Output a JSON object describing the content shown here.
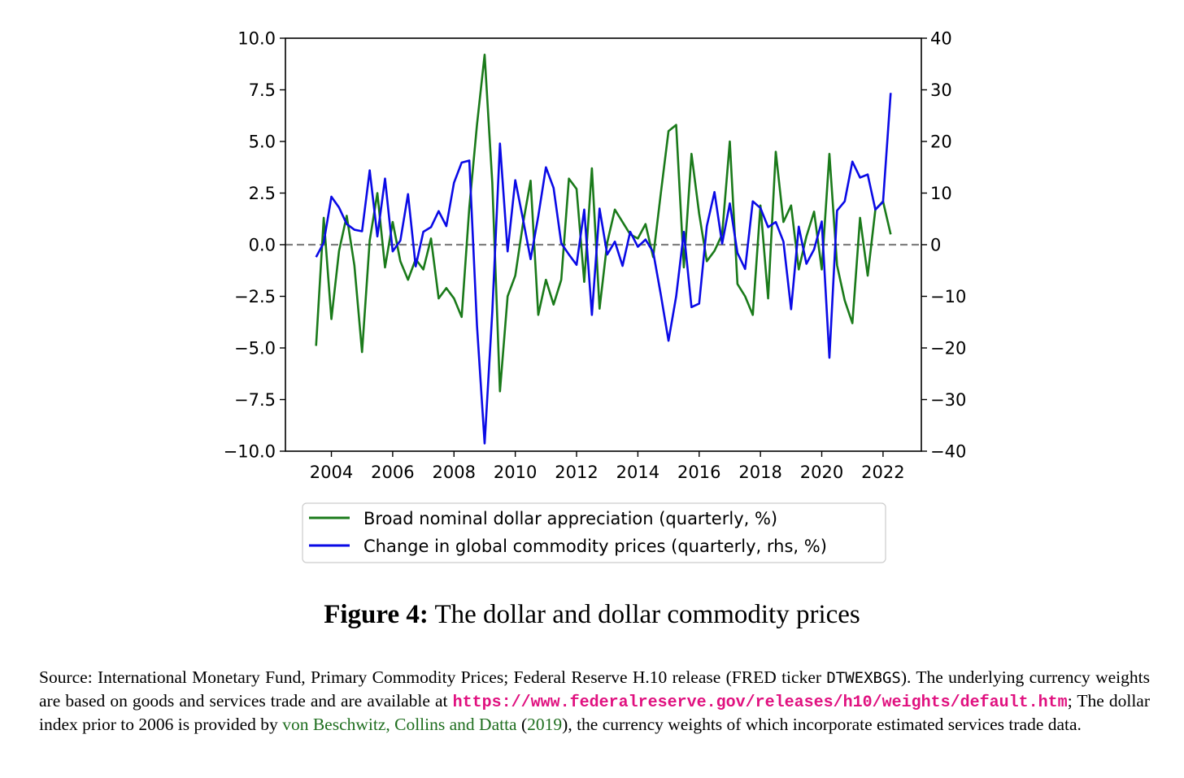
{
  "chart_data": {
    "type": "line",
    "title": "",
    "xlabel": "",
    "ylabel_left": "",
    "ylabel_right": "",
    "x_ticks": [
      "2004",
      "2006",
      "2008",
      "2010",
      "2012",
      "2014",
      "2016",
      "2018",
      "2020",
      "2022"
    ],
    "xlim": [
      2002.5,
      2023.25
    ],
    "ylim_left": [
      -10.0,
      10.0
    ],
    "ylim_right": [
      -40,
      40
    ],
    "y_ticks_left": [
      "10.0",
      "7.5",
      "5.0",
      "2.5",
      "0.0",
      "−2.5",
      "−5.0",
      "−7.5",
      "−10.0"
    ],
    "y_ticks_left_values": [
      10.0,
      7.5,
      5.0,
      2.5,
      0.0,
      -2.5,
      -5.0,
      -7.5,
      -10.0
    ],
    "y_ticks_right": [
      "40",
      "30",
      "20",
      "10",
      "0",
      "−10",
      "−20",
      "−30",
      "−40"
    ],
    "y_ticks_right_values": [
      40,
      30,
      20,
      10,
      0,
      -10,
      -20,
      -30,
      -40
    ],
    "zero_line": {
      "value": 0,
      "style": "dashed",
      "color": "#808080"
    },
    "legend": {
      "placement": "below-center"
    },
    "series": [
      {
        "name": "Broad nominal dollar appreciation (quarterly, %)",
        "axis": "left",
        "color": "#1a7a1a",
        "x": [
          2003.5,
          2003.75,
          2004.0,
          2004.25,
          2004.5,
          2004.75,
          2005.0,
          2005.25,
          2005.5,
          2005.75,
          2006.0,
          2006.25,
          2006.5,
          2006.75,
          2007.0,
          2007.25,
          2007.5,
          2007.75,
          2008.0,
          2008.25,
          2008.5,
          2008.75,
          2009.0,
          2009.25,
          2009.5,
          2009.75,
          2010.0,
          2010.25,
          2010.5,
          2010.75,
          2011.0,
          2011.25,
          2011.5,
          2011.75,
          2012.0,
          2012.25,
          2012.5,
          2012.75,
          2013.0,
          2013.25,
          2013.5,
          2013.75,
          2014.0,
          2014.25,
          2014.5,
          2014.75,
          2015.0,
          2015.25,
          2015.5,
          2015.75,
          2016.0,
          2016.25,
          2016.5,
          2016.75,
          2017.0,
          2017.25,
          2017.5,
          2017.75,
          2018.0,
          2018.25,
          2018.5,
          2018.75,
          2019.0,
          2019.25,
          2019.5,
          2019.75,
          2020.0,
          2020.25,
          2020.5,
          2020.75,
          2021.0,
          2021.25,
          2021.5,
          2021.75,
          2022.0,
          2022.25
        ],
        "values": [
          -4.9,
          1.3,
          -3.6,
          -0.3,
          1.4,
          -1.0,
          -5.2,
          0.2,
          2.5,
          -1.1,
          1.1,
          -0.8,
          -1.7,
          -0.7,
          -1.2,
          0.3,
          -2.6,
          -2.1,
          -2.6,
          -3.5,
          1.8,
          5.8,
          9.2,
          3.0,
          -7.1,
          -2.5,
          -1.5,
          1.0,
          3.1,
          -3.4,
          -1.7,
          -2.9,
          -1.7,
          3.2,
          2.7,
          -1.8,
          3.7,
          -3.1,
          0.1,
          1.7,
          1.1,
          0.5,
          0.3,
          1.0,
          -0.6,
          2.5,
          5.5,
          5.8,
          -1.1,
          4.4,
          1.5,
          -0.8,
          -0.3,
          0.5,
          5.0,
          -1.9,
          -2.5,
          -3.4,
          1.9,
          -2.6,
          4.5,
          1.1,
          1.9,
          -1.2,
          0.4,
          1.6,
          -1.2,
          4.4,
          -1.0,
          -2.7,
          -3.8,
          1.3,
          -1.5,
          1.7,
          2.1,
          0.5
        ]
      },
      {
        "name": "Change in global commodity prices (quarterly, rhs, %)",
        "axis": "right",
        "color": "#0a0ae6",
        "x": [
          2003.5,
          2003.75,
          2004.0,
          2004.25,
          2004.5,
          2004.75,
          2005.0,
          2005.25,
          2005.5,
          2005.75,
          2006.0,
          2006.25,
          2006.5,
          2006.75,
          2007.0,
          2007.25,
          2007.5,
          2007.75,
          2008.0,
          2008.25,
          2008.5,
          2008.75,
          2009.0,
          2009.25,
          2009.5,
          2009.75,
          2010.0,
          2010.25,
          2010.5,
          2010.75,
          2011.0,
          2011.25,
          2011.5,
          2011.75,
          2012.0,
          2012.25,
          2012.5,
          2012.75,
          2013.0,
          2013.25,
          2013.5,
          2013.75,
          2014.0,
          2014.25,
          2014.5,
          2014.75,
          2015.0,
          2015.25,
          2015.5,
          2015.75,
          2016.0,
          2016.25,
          2016.5,
          2016.75,
          2017.0,
          2017.25,
          2017.5,
          2017.75,
          2018.0,
          2018.25,
          2018.5,
          2018.75,
          2019.0,
          2019.25,
          2019.5,
          2019.75,
          2020.0,
          2020.25,
          2020.5,
          2020.75,
          2021.0,
          2021.25,
          2021.5,
          2021.75,
          2022.0,
          2022.25
        ],
        "values": [
          -2.4,
          0.4,
          9.3,
          7.2,
          4.0,
          2.9,
          2.6,
          14.4,
          1.6,
          12.8,
          -1.3,
          0.8,
          9.8,
          -4.2,
          2.5,
          3.4,
          6.5,
          3.6,
          12.0,
          15.9,
          16.3,
          -15.6,
          -38.5,
          -13.0,
          19.6,
          -1.3,
          12.5,
          5.0,
          -2.8,
          5.5,
          15.0,
          11.0,
          0.3,
          -1.9,
          -3.9,
          6.8,
          -13.6,
          7.0,
          -1.9,
          0.6,
          -4.1,
          2.5,
          -0.4,
          1.0,
          -1.4,
          -9.7,
          -18.6,
          -10.0,
          2.5,
          -12.1,
          -11.4,
          3.6,
          10.2,
          0.2,
          8.0,
          -1.6,
          -4.7,
          8.4,
          7.1,
          3.4,
          4.4,
          0.6,
          -12.5,
          3.5,
          -3.7,
          -0.9,
          4.5,
          -21.9,
          6.6,
          8.4,
          16.1,
          13.0,
          13.6,
          6.8,
          8.3,
          29.4
        ]
      }
    ]
  },
  "caption": {
    "label": "Figure 4:",
    "title": "The dollar and dollar commodity prices"
  },
  "source": {
    "text1": "Source: International Monetary Fund, Primary Commodity Prices; Federal Reserve H.10 release (FRED ticker ",
    "ticker": "DTWEXBGS",
    "text2": "). The underlying currency weights are based on goods and services trade and are available at ",
    "url": "https://www.federalreserve.gov/releases/h10/weights/default.htm",
    "text3": "; The dollar index prior to 2006 is provided by ",
    "cite_authors": "von Beschwitz, Collins and Datta",
    "cite_open": " (",
    "cite_year": "2019",
    "text4": "), the currency weights of which incorporate estimated services trade data."
  }
}
